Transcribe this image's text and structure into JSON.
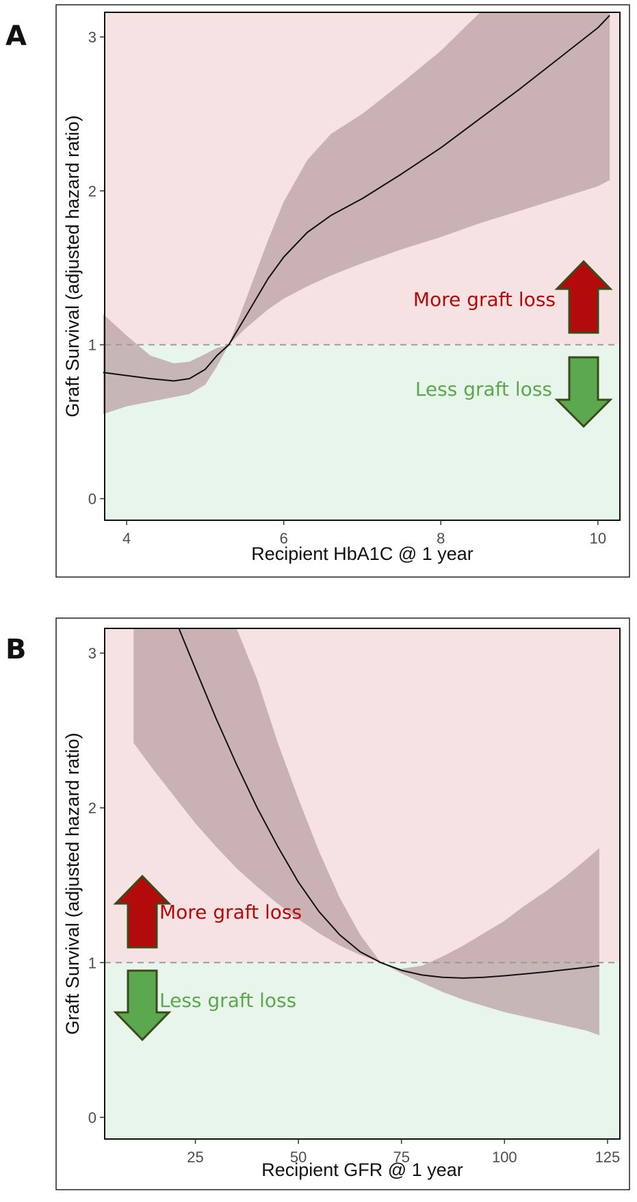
{
  "colors": {
    "above_region": "#f6e1e3",
    "below_region": "#e8f5ea",
    "ci_band": "#b89fa2",
    "curve": "#111111",
    "reference_line": "#9a9a9a",
    "more_loss": "#b30b0b",
    "less_loss": "#5ba84f",
    "arrow_outline": "#3a4a1a"
  },
  "chart_data": [
    {
      "type": "line",
      "panel_label": "A",
      "title": "",
      "xlabel": "Recipient HbA1C @ 1 year",
      "ylabel": "Graft Survival (adjusted hazard ratio)",
      "xlim": [
        3.72,
        10.28
      ],
      "ylim": [
        -0.14,
        3.16
      ],
      "xticks": [
        4,
        6,
        8,
        10
      ],
      "yticks": [
        0,
        1,
        2,
        3
      ],
      "reference_line": 1,
      "grid": false,
      "series": [
        {
          "x": [
            3.7,
            4.0,
            4.3,
            4.6,
            4.8,
            5.0,
            5.15,
            5.3,
            5.5,
            5.8,
            6.0,
            6.3,
            6.6,
            7.0,
            7.5,
            8.0,
            8.5,
            9.0,
            9.5,
            10.0,
            10.15
          ],
          "y": [
            0.82,
            0.8,
            0.78,
            0.765,
            0.78,
            0.84,
            0.93,
            1.0,
            1.17,
            1.43,
            1.57,
            1.73,
            1.84,
            1.95,
            2.11,
            2.28,
            2.47,
            2.66,
            2.86,
            3.06,
            3.14
          ],
          "lower": [
            0.55,
            0.6,
            0.63,
            0.66,
            0.68,
            0.74,
            0.86,
            1.0,
            1.1,
            1.23,
            1.3,
            1.38,
            1.45,
            1.53,
            1.62,
            1.7,
            1.79,
            1.87,
            1.95,
            2.03,
            2.07
          ],
          "upper": [
            1.2,
            1.06,
            0.93,
            0.88,
            0.89,
            0.94,
            0.98,
            1.0,
            1.27,
            1.68,
            1.93,
            2.2,
            2.37,
            2.5,
            2.7,
            2.91,
            3.16,
            3.16,
            3.16,
            3.16,
            3.16
          ]
        }
      ],
      "annotations": [
        "More graft loss",
        "Less graft loss"
      ]
    },
    {
      "type": "line",
      "panel_label": "B",
      "title": "",
      "xlabel": "Recipient GFR @ 1 year",
      "ylabel": "Graft Survival (adjusted hazard ratio)",
      "xlim": [
        3,
        128
      ],
      "ylim": [
        -0.14,
        3.16
      ],
      "xticks": [
        25,
        50,
        75,
        100,
        125
      ],
      "yticks": [
        0,
        1,
        2,
        3
      ],
      "reference_line": 1,
      "grid": false,
      "series": [
        {
          "x": [
            21,
            25,
            30,
            35,
            40,
            45,
            50,
            55,
            60,
            65,
            70,
            75,
            80,
            85,
            90,
            95,
            100,
            110,
            120,
            123
          ],
          "y": [
            3.16,
            2.9,
            2.58,
            2.28,
            2.0,
            1.75,
            1.52,
            1.33,
            1.18,
            1.07,
            1.0,
            0.95,
            0.92,
            0.905,
            0.9,
            0.905,
            0.915,
            0.94,
            0.97,
            0.98
          ],
          "lower": [
            null,
            null,
            null,
            null,
            null,
            null,
            null,
            null,
            null,
            null,
            null,
            null,
            null,
            null,
            null,
            null,
            null,
            null,
            null,
            null
          ],
          "upper": [
            null,
            null,
            null,
            null,
            null,
            null,
            null,
            null,
            null,
            null,
            null,
            null,
            null,
            null,
            null,
            null,
            null,
            null,
            null,
            null
          ]
        }
      ],
      "band": {
        "x": [
          10,
          15,
          20,
          25,
          30,
          35,
          40,
          45,
          50,
          55,
          60,
          65,
          70,
          75,
          80,
          85,
          90,
          95,
          100,
          105,
          110,
          115,
          120,
          123
        ],
        "lower": [
          2.42,
          2.24,
          2.07,
          1.9,
          1.75,
          1.61,
          1.49,
          1.38,
          1.28,
          1.19,
          1.11,
          1.05,
          1.0,
          0.93,
          0.87,
          0.81,
          0.76,
          0.72,
          0.68,
          0.65,
          0.62,
          0.59,
          0.56,
          0.53
        ],
        "upper": [
          3.16,
          3.16,
          3.16,
          3.16,
          3.16,
          3.16,
          2.83,
          2.42,
          2.06,
          1.72,
          1.42,
          1.18,
          1.0,
          0.96,
          0.98,
          1.04,
          1.11,
          1.19,
          1.27,
          1.37,
          1.46,
          1.56,
          1.67,
          1.74
        ]
      },
      "annotations": [
        "More graft loss",
        "Less graft loss"
      ]
    }
  ]
}
